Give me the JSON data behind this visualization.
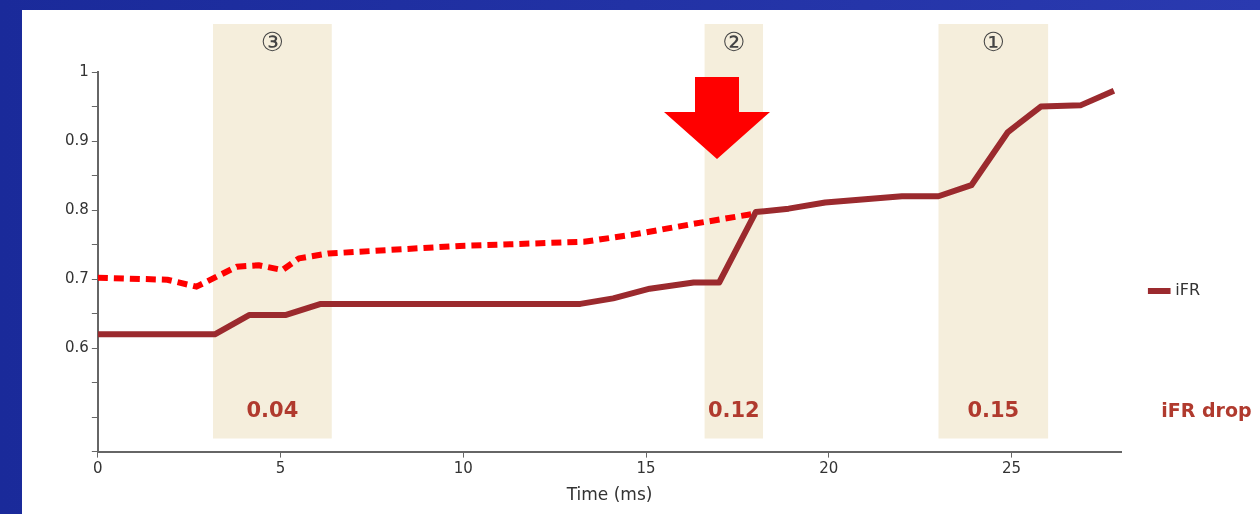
{
  "chart_data": {
    "type": "line",
    "xlabel": "Time (ms)",
    "xlim": [
      0,
      28
    ],
    "xticks": [
      0,
      5,
      10,
      15,
      20,
      25
    ],
    "ylim": [
      0.45,
      1.0
    ],
    "yticks": [
      {
        "value": 0.45,
        "label": null
      },
      {
        "value": 0.5,
        "label": null
      },
      {
        "value": 0.55,
        "label": null
      },
      0.6,
      {
        "value": 0.65,
        "label": null
      },
      0.7,
      {
        "value": 0.75,
        "label": null
      },
      0.8,
      {
        "value": 0.85,
        "label": null
      },
      0.9,
      {
        "value": 0.95,
        "label": null
      },
      1
    ],
    "grid": false,
    "legend": "right",
    "marker": "none",
    "series": [
      {
        "name": "iFR",
        "color": "#9b2a2e",
        "line_style": "solid",
        "x": [
          0,
          3.2,
          4.15,
          5.15,
          6.1,
          13.2,
          14.1,
          15.1,
          16.3,
          17.0,
          18.0,
          18.9,
          19.9,
          22.0,
          23.0,
          23.9,
          24.9,
          25.8,
          26.9,
          27.8
        ],
        "values": [
          0.62,
          0.62,
          0.648,
          0.648,
          0.664,
          0.664,
          0.672,
          0.686,
          0.695,
          0.695,
          0.797,
          0.802,
          0.811,
          0.82,
          0.82,
          0.836,
          0.913,
          0.95,
          0.952,
          0.973
        ]
      },
      {
        "color": "#ff0000",
        "line_style": "dashed",
        "x": [
          0,
          1.9,
          2.7,
          3.8,
          4.4,
          5.05,
          5.5,
          6.3,
          9.9,
          13.3,
          14.6,
          16.3,
          18.0
        ],
        "values": [
          0.702,
          0.699,
          0.689,
          0.718,
          0.72,
          0.713,
          0.73,
          0.737,
          0.748,
          0.754,
          0.764,
          0.78,
          0.795
        ]
      }
    ],
    "bands": [
      {
        "axis": "x",
        "from": 3.15,
        "to": 6.4,
        "label": "③",
        "color": "#f5eedc"
      },
      {
        "axis": "x",
        "from": 16.6,
        "to": 18.2,
        "label": "②",
        "color": "#f5eedc"
      },
      {
        "axis": "x",
        "from": 23.0,
        "to": 26.0,
        "label": "①",
        "color": "#f5eedc"
      }
    ],
    "annotations": [
      "0.04",
      "0.12",
      "0.15",
      "iFR drop"
    ]
  }
}
